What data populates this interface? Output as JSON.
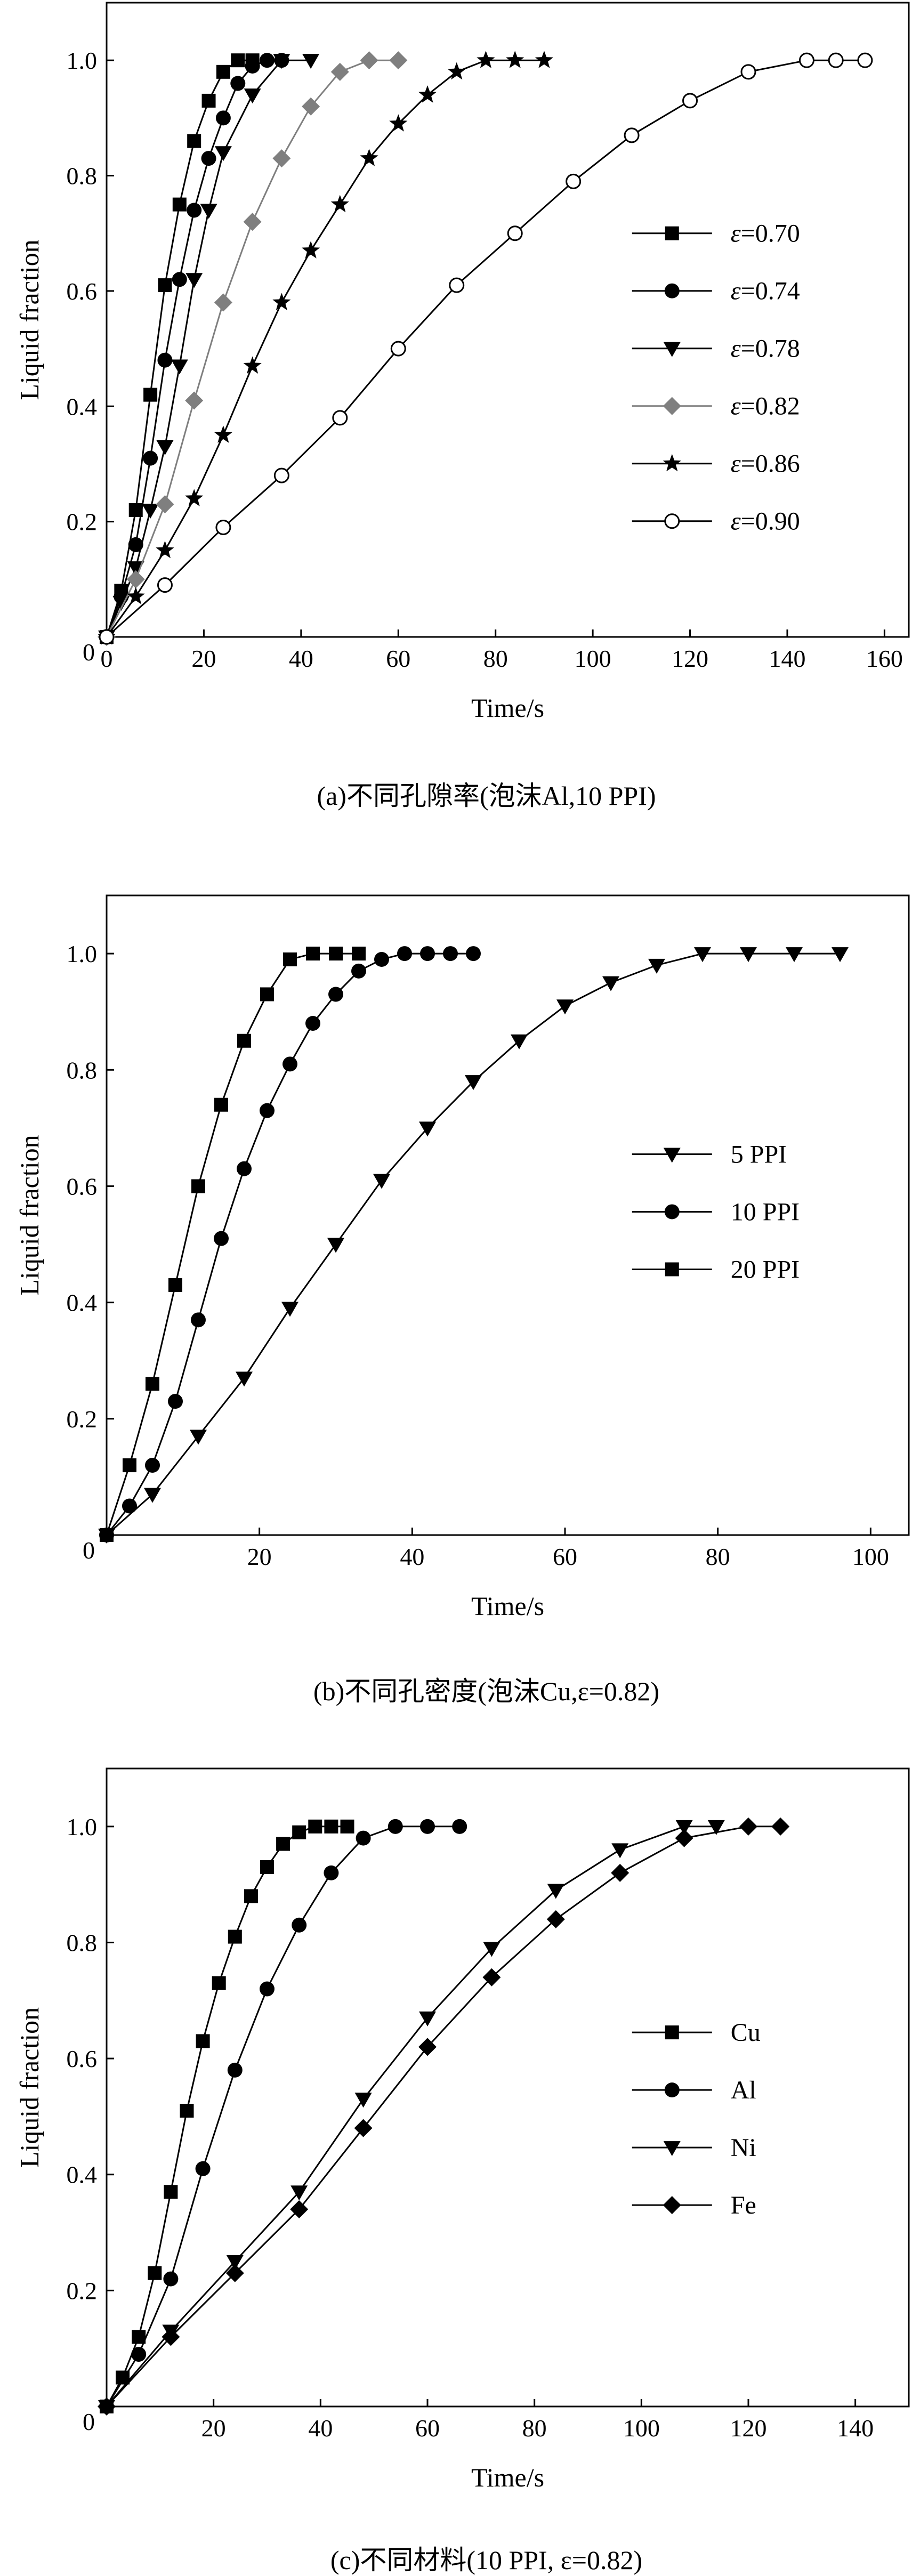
{
  "chart_data": [
    {
      "type": "line",
      "xlabel": "Time/s",
      "ylabel": "Liquid fraction",
      "caption": "(a)不同孔隙率(泡沫Al,10 PPI)",
      "xlim": [
        0,
        165
      ],
      "ylim": [
        0,
        1.1
      ],
      "xticks": [
        0,
        20,
        40,
        60,
        80,
        100,
        120,
        140,
        160
      ],
      "xtick_labels": [
        "0",
        "20",
        "40",
        "60",
        "80",
        "100",
        "120",
        "140",
        "160"
      ],
      "yticks": [
        0.2,
        0.4,
        0.6,
        0.8,
        1.0
      ],
      "ytick_labels": [
        "0.2",
        "0.4",
        "0.6",
        "0.8",
        "1.0"
      ],
      "origin_label": "0",
      "legend_position": "right",
      "series": [
        {
          "prefix": "ε",
          "name": "=0.70",
          "marker": "square",
          "color": "#000000",
          "x": [
            0,
            3,
            6,
            9,
            12,
            15,
            18,
            21,
            24,
            27,
            30
          ],
          "y": [
            0,
            0.08,
            0.22,
            0.42,
            0.61,
            0.75,
            0.86,
            0.93,
            0.98,
            1.0,
            1.0
          ]
        },
        {
          "prefix": "ε",
          "name": "=0.74",
          "marker": "circle",
          "color": "#000000",
          "x": [
            0,
            3,
            6,
            9,
            12,
            15,
            18,
            21,
            24,
            27,
            30,
            33,
            36
          ],
          "y": [
            0,
            0.07,
            0.16,
            0.31,
            0.48,
            0.62,
            0.74,
            0.83,
            0.9,
            0.96,
            0.99,
            1.0,
            1.0
          ]
        },
        {
          "prefix": "ε",
          "name": "=0.78",
          "marker": "triangle-down",
          "color": "#000000",
          "x": [
            0,
            3,
            6,
            9,
            12,
            15,
            18,
            21,
            24,
            30,
            36,
            42
          ],
          "y": [
            0,
            0.06,
            0.12,
            0.22,
            0.33,
            0.47,
            0.62,
            0.74,
            0.84,
            0.94,
            1.0,
            1.0
          ]
        },
        {
          "prefix": "ε",
          "name": "=0.82",
          "marker": "diamond",
          "color": "#7f7f7f",
          "x": [
            0,
            6,
            12,
            18,
            24,
            30,
            36,
            42,
            48,
            54,
            60
          ],
          "y": [
            0,
            0.1,
            0.23,
            0.41,
            0.58,
            0.72,
            0.83,
            0.92,
            0.98,
            1.0,
            1.0
          ]
        },
        {
          "prefix": "ε",
          "name": "=0.86",
          "marker": "star",
          "color": "#000000",
          "x": [
            0,
            6,
            12,
            18,
            24,
            30,
            36,
            42,
            48,
            54,
            60,
            66,
            72,
            78,
            84,
            90
          ],
          "y": [
            0,
            0.07,
            0.15,
            0.24,
            0.35,
            0.47,
            0.58,
            0.67,
            0.75,
            0.83,
            0.89,
            0.94,
            0.98,
            1.0,
            1.0,
            1.0
          ]
        },
        {
          "prefix": "ε",
          "name": "=0.90",
          "marker": "circle-open",
          "color": "#000000",
          "x": [
            0,
            12,
            24,
            36,
            48,
            60,
            72,
            84,
            96,
            108,
            120,
            132,
            144,
            150,
            156
          ],
          "y": [
            0,
            0.09,
            0.19,
            0.28,
            0.38,
            0.5,
            0.61,
            0.7,
            0.79,
            0.87,
            0.93,
            0.98,
            1.0,
            1.0,
            1.0
          ]
        }
      ]
    },
    {
      "type": "line",
      "xlabel": "Time/s",
      "ylabel": "Liquid fraction",
      "caption": "(b)不同孔密度(泡沫Cu,ε=0.82)",
      "xlim": [
        0,
        105
      ],
      "ylim": [
        0,
        1.1
      ],
      "xticks": [
        20,
        40,
        60,
        80,
        100
      ],
      "xtick_labels": [
        "20",
        "40",
        "60",
        "80",
        "100"
      ],
      "yticks": [
        0.2,
        0.4,
        0.6,
        0.8,
        1.0
      ],
      "ytick_labels": [
        "0.2",
        "0.4",
        "0.6",
        "0.8",
        "1.0"
      ],
      "origin_label": "0",
      "legend_position": "right",
      "series": [
        {
          "prefix": "",
          "name": "5 PPI",
          "marker": "triangle-down",
          "color": "#000000",
          "x": [
            0,
            6,
            12,
            18,
            24,
            30,
            36,
            42,
            48,
            54,
            60,
            66,
            72,
            78,
            84,
            90,
            96
          ],
          "y": [
            0,
            0.07,
            0.17,
            0.27,
            0.39,
            0.5,
            0.61,
            0.7,
            0.78,
            0.85,
            0.91,
            0.95,
            0.98,
            1.0,
            1.0,
            1.0,
            1.0
          ]
        },
        {
          "prefix": "",
          "name": "10 PPI",
          "marker": "circle",
          "color": "#000000",
          "x": [
            0,
            3,
            6,
            9,
            12,
            15,
            18,
            21,
            24,
            27,
            30,
            33,
            36,
            39,
            42,
            45,
            48
          ],
          "y": [
            0,
            0.05,
            0.12,
            0.23,
            0.37,
            0.51,
            0.63,
            0.73,
            0.81,
            0.88,
            0.93,
            0.97,
            0.99,
            1.0,
            1.0,
            1.0,
            1.0
          ]
        },
        {
          "prefix": "",
          "name": "20 PPI",
          "marker": "square",
          "color": "#000000",
          "x": [
            0,
            3,
            6,
            9,
            12,
            15,
            18,
            21,
            24,
            27,
            30,
            33
          ],
          "y": [
            0,
            0.12,
            0.26,
            0.43,
            0.6,
            0.74,
            0.85,
            0.93,
            0.99,
            1.0,
            1.0,
            1.0
          ]
        }
      ]
    },
    {
      "type": "line",
      "xlabel": "Time/s",
      "ylabel": "Liquid fraction",
      "caption": "(c)不同材料(10 PPI, ε=0.82)",
      "xlim": [
        0,
        150
      ],
      "ylim": [
        0,
        1.1
      ],
      "xticks": [
        20,
        40,
        60,
        80,
        100,
        120,
        140
      ],
      "xtick_labels": [
        "20",
        "40",
        "60",
        "80",
        "100",
        "120",
        "140"
      ],
      "yticks": [
        0.2,
        0.4,
        0.6,
        0.8,
        1.0
      ],
      "ytick_labels": [
        "0.2",
        "0.4",
        "0.6",
        "0.8",
        "1.0"
      ],
      "origin_label": "0",
      "legend_position": "right",
      "series": [
        {
          "prefix": "",
          "name": "Cu",
          "marker": "square",
          "color": "#000000",
          "x": [
            0,
            3,
            6,
            9,
            12,
            15,
            18,
            21,
            24,
            27,
            30,
            33,
            36,
            39,
            42,
            45
          ],
          "y": [
            0,
            0.05,
            0.12,
            0.23,
            0.37,
            0.51,
            0.63,
            0.73,
            0.81,
            0.88,
            0.93,
            0.97,
            0.99,
            1.0,
            1.0,
            1.0
          ]
        },
        {
          "prefix": "",
          "name": "Al",
          "marker": "circle",
          "color": "#000000",
          "x": [
            0,
            6,
            12,
            18,
            24,
            30,
            36,
            42,
            48,
            54,
            60,
            66
          ],
          "y": [
            0,
            0.09,
            0.22,
            0.41,
            0.58,
            0.72,
            0.83,
            0.92,
            0.98,
            1.0,
            1.0,
            1.0
          ]
        },
        {
          "prefix": "",
          "name": "Ni",
          "marker": "triangle-down",
          "color": "#000000",
          "x": [
            0,
            12,
            24,
            36,
            48,
            60,
            72,
            84,
            96,
            108,
            114
          ],
          "y": [
            0,
            0.13,
            0.25,
            0.37,
            0.53,
            0.67,
            0.79,
            0.89,
            0.96,
            1.0,
            1.0
          ]
        },
        {
          "prefix": "",
          "name": "Fe",
          "marker": "diamond",
          "color": "#000000",
          "x": [
            0,
            12,
            24,
            36,
            48,
            60,
            72,
            84,
            96,
            108,
            120,
            126
          ],
          "y": [
            0,
            0.12,
            0.23,
            0.34,
            0.48,
            0.62,
            0.74,
            0.84,
            0.92,
            0.98,
            1.0,
            1.0
          ]
        }
      ]
    }
  ]
}
